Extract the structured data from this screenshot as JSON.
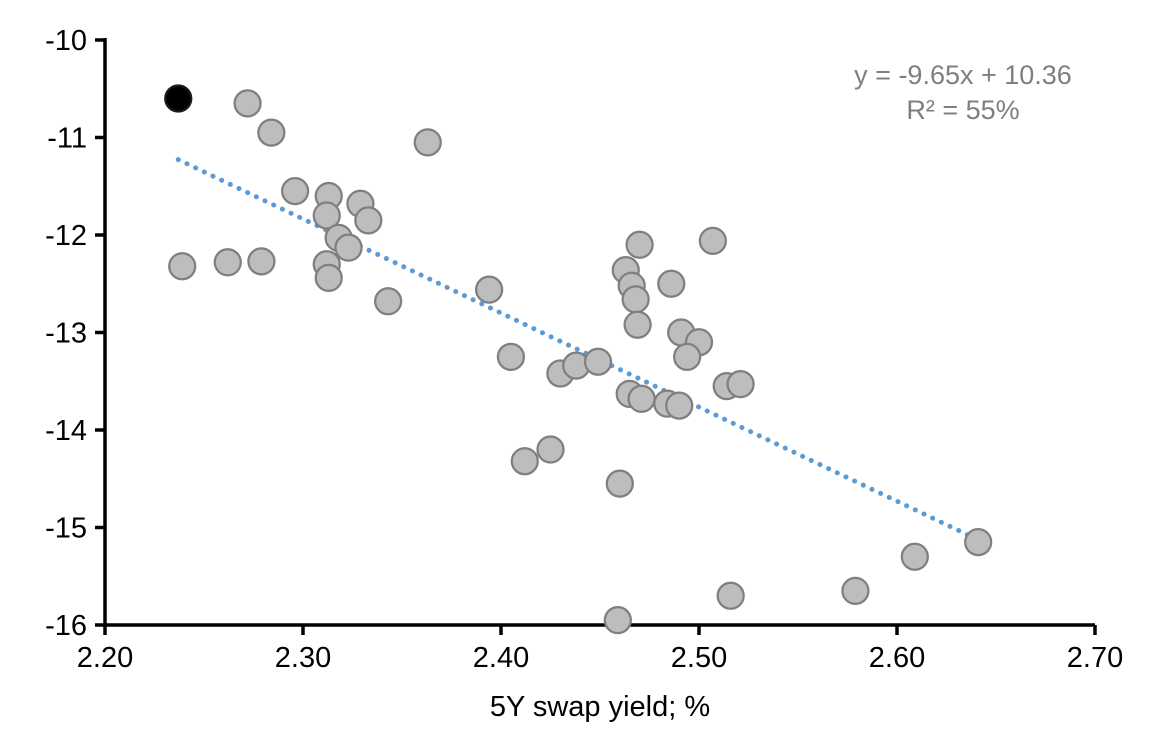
{
  "chart_data": {
    "type": "scatter",
    "title": "",
    "xlabel": "5Y swap yield; %",
    "ylabel": "",
    "xlim": [
      2.2,
      2.7
    ],
    "ylim": [
      -16,
      -10
    ],
    "grid": false,
    "x_ticks": [
      2.2,
      2.3,
      2.4,
      2.5,
      2.6,
      2.7
    ],
    "x_tick_labels": [
      "2.20",
      "2.30",
      "2.40",
      "2.50",
      "2.60",
      "2.70"
    ],
    "y_ticks": [
      -10,
      -11,
      -12,
      -13,
      -14,
      -15,
      -16
    ],
    "y_tick_labels": [
      "-10",
      "-11",
      "-12",
      "-13",
      "-14",
      "-15",
      "-16"
    ],
    "annotation": {
      "line1": "y = -9.65x + 10.36",
      "line2": "R² = 55%",
      "color": "#7F7F7F"
    },
    "trendline": {
      "slope": -9.65,
      "intercept": 10.36,
      "x_start": 2.237,
      "x_end": 2.641,
      "style": "dotted",
      "color": "#5B9BD5"
    },
    "series": [
      {
        "name": "observations",
        "color": "#BDBDBD",
        "stroke": "#7F7F7F",
        "points": [
          [
            2.272,
            -10.65
          ],
          [
            2.284,
            -10.95
          ],
          [
            2.363,
            -11.05
          ],
          [
            2.296,
            -11.55
          ],
          [
            2.313,
            -11.6
          ],
          [
            2.329,
            -11.68
          ],
          [
            2.312,
            -11.8
          ],
          [
            2.333,
            -11.85
          ],
          [
            2.318,
            -12.03
          ],
          [
            2.323,
            -12.13
          ],
          [
            2.239,
            -12.32
          ],
          [
            2.262,
            -12.28
          ],
          [
            2.279,
            -12.27
          ],
          [
            2.312,
            -12.3
          ],
          [
            2.313,
            -12.44
          ],
          [
            2.343,
            -12.68
          ],
          [
            2.394,
            -12.56
          ],
          [
            2.47,
            -12.1
          ],
          [
            2.507,
            -12.06
          ],
          [
            2.463,
            -12.36
          ],
          [
            2.466,
            -12.52
          ],
          [
            2.468,
            -12.66
          ],
          [
            2.486,
            -12.5
          ],
          [
            2.469,
            -12.92
          ],
          [
            2.491,
            -13.0
          ],
          [
            2.5,
            -13.1
          ],
          [
            2.494,
            -13.25
          ],
          [
            2.405,
            -13.25
          ],
          [
            2.43,
            -13.42
          ],
          [
            2.438,
            -13.34
          ],
          [
            2.449,
            -13.3
          ],
          [
            2.514,
            -13.55
          ],
          [
            2.521,
            -13.53
          ],
          [
            2.465,
            -13.63
          ],
          [
            2.471,
            -13.68
          ],
          [
            2.484,
            -13.73
          ],
          [
            2.49,
            -13.75
          ],
          [
            2.425,
            -14.2
          ],
          [
            2.412,
            -14.32
          ],
          [
            2.46,
            -14.55
          ],
          [
            2.641,
            -15.15
          ],
          [
            2.609,
            -15.3
          ],
          [
            2.579,
            -15.65
          ],
          [
            2.516,
            -15.7
          ],
          [
            2.459,
            -15.95
          ]
        ]
      },
      {
        "name": "highlighted-observation",
        "color": "#000000",
        "stroke": "#1A1A1A",
        "points": [
          [
            2.237,
            -10.6
          ]
        ]
      }
    ]
  },
  "colors": {
    "background": "#FFFFFF",
    "axis": "#000000",
    "marker_fill": "#BDBDBD",
    "marker_stroke": "#7F7F7F",
    "highlight_marker": "#000000",
    "trendline": "#5B9BD5",
    "annotation_text": "#7F7F7F"
  }
}
